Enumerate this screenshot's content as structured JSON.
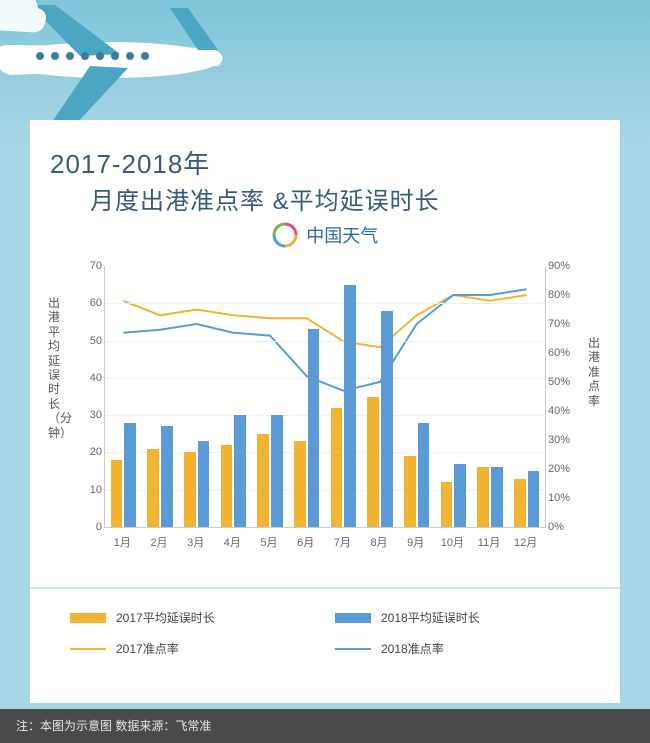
{
  "hero": {
    "bg_top": "#7fc5db",
    "bg_bottom": "#a8d5e5"
  },
  "title": {
    "line1": "2017-2018年",
    "line2": "月度出港准点率 &平均延误时长",
    "color": "#3a5a7a"
  },
  "brand": {
    "text": "中国天气",
    "color": "#2a6aa0"
  },
  "chart": {
    "type": "bar+line-dual-axis",
    "background_color": "#ffffff",
    "grid_color": "#eeeeee",
    "axis_color": "#cccccc",
    "categories": [
      "1月",
      "2月",
      "3月",
      "4月",
      "5月",
      "6月",
      "7月",
      "8月",
      "9月",
      "10月",
      "11月",
      "12月"
    ],
    "yL": {
      "title": "出港平均延误时长（分钟）",
      "min": 0,
      "max": 70,
      "step": 10,
      "label_fontsize": 11
    },
    "yR": {
      "title": "出港准点率",
      "min": 0,
      "max": 90,
      "step": 10,
      "suffix": "%",
      "label_fontsize": 11
    },
    "bars": {
      "width_ratio": 0.32,
      "gap_ratio": 0.02,
      "series": [
        {
          "name": "2017平均延误时长",
          "color": "#f2b430",
          "axis": "L",
          "values": [
            18,
            21,
            20,
            22,
            25,
            23,
            32,
            35,
            19,
            12,
            16,
            13
          ]
        },
        {
          "name": "2018平均延误时长",
          "color": "#5a9bd5",
          "axis": "L",
          "values": [
            28,
            27,
            23,
            30,
            30,
            53,
            65,
            58,
            28,
            17,
            16,
            15
          ]
        }
      ]
    },
    "lines": {
      "width": 2,
      "series": [
        {
          "name": "2017准点率",
          "color": "#f2b430",
          "axis": "R",
          "values": [
            78,
            73,
            75,
            73,
            72,
            72,
            64,
            62,
            73,
            80,
            78,
            80
          ]
        },
        {
          "name": "2018准点率",
          "color": "#5a9bd5",
          "axis": "R",
          "values": [
            67,
            68,
            70,
            67,
            66,
            52,
            47,
            50,
            70,
            80,
            80,
            82
          ]
        }
      ]
    },
    "label_color": "#666666",
    "label_fontsize": 11
  },
  "legend": {
    "items": [
      {
        "kind": "bar",
        "color": "#f2b430",
        "label": "2017平均延误时长"
      },
      {
        "kind": "bar",
        "color": "#5a9bd5",
        "label": "2018平均延误时长"
      },
      {
        "kind": "line",
        "color": "#f2b430",
        "label": "2017准点率"
      },
      {
        "kind": "line",
        "color": "#5a9bd5",
        "label": "2018准点率"
      }
    ],
    "fontsize": 12,
    "text_color": "#444444",
    "divider_color": "#cfe6ee"
  },
  "footer": {
    "text": "注：本图为示意图 数据来源：飞常准",
    "bg": "#4a4a4a",
    "color": "#e8e8e8"
  }
}
